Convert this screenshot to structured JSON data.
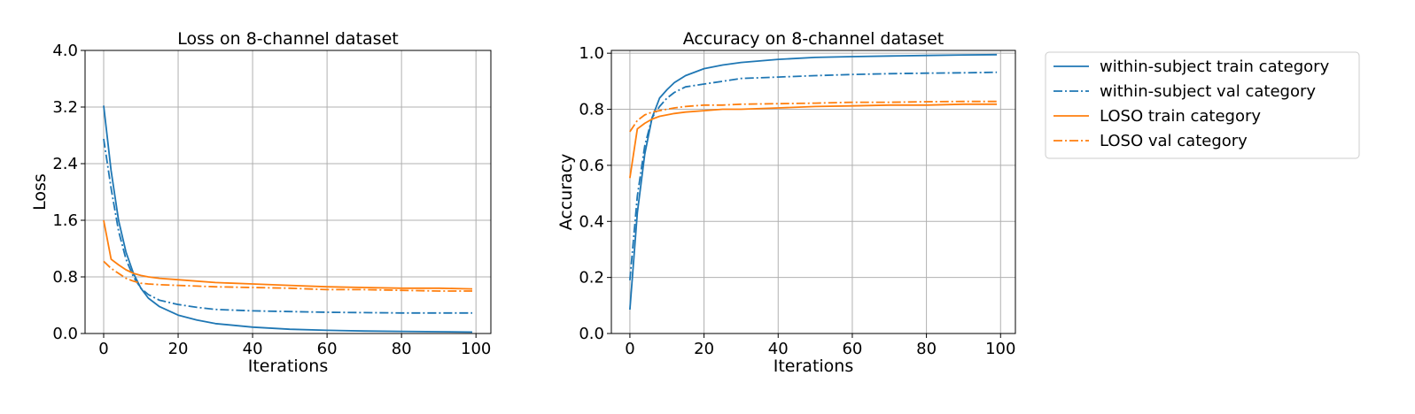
{
  "chart_data": [
    {
      "type": "line",
      "title": "Loss on 8-channel dataset",
      "xlabel": "Iterations",
      "ylabel": "Loss",
      "xlim": [
        -5,
        104
      ],
      "ylim": [
        0.0,
        4.0
      ],
      "xticks": [
        0,
        20,
        40,
        60,
        80,
        100
      ],
      "xtick_labels": [
        "0",
        "20",
        "40",
        "60",
        "80",
        "100"
      ],
      "yticks": [
        0.0,
        0.8,
        1.6,
        2.4,
        3.2,
        4.0
      ],
      "ytick_labels": [
        "0.0",
        "0.8",
        "1.6",
        "2.4",
        "3.2",
        "4.0"
      ],
      "grid": true,
      "x": [
        0,
        2,
        4,
        6,
        8,
        10,
        12,
        15,
        20,
        25,
        30,
        40,
        50,
        60,
        70,
        80,
        90,
        99
      ],
      "series": [
        {
          "name": "within-subject train category",
          "values": [
            3.22,
            2.3,
            1.6,
            1.15,
            0.85,
            0.64,
            0.5,
            0.38,
            0.26,
            0.19,
            0.14,
            0.09,
            0.06,
            0.045,
            0.035,
            0.03,
            0.025,
            0.02
          ]
        },
        {
          "name": "within-subject val category",
          "values": [
            2.75,
            2.05,
            1.45,
            1.05,
            0.8,
            0.64,
            0.55,
            0.47,
            0.41,
            0.37,
            0.34,
            0.32,
            0.31,
            0.3,
            0.295,
            0.29,
            0.29,
            0.29
          ]
        },
        {
          "name": "LOSO train category",
          "values": [
            1.6,
            1.05,
            0.97,
            0.9,
            0.85,
            0.82,
            0.8,
            0.78,
            0.76,
            0.74,
            0.72,
            0.7,
            0.68,
            0.66,
            0.65,
            0.64,
            0.64,
            0.63
          ]
        },
        {
          "name": "LOSO val category",
          "values": [
            1.02,
            0.92,
            0.85,
            0.78,
            0.74,
            0.71,
            0.7,
            0.69,
            0.68,
            0.67,
            0.66,
            0.65,
            0.64,
            0.62,
            0.62,
            0.61,
            0.6,
            0.6
          ]
        }
      ]
    },
    {
      "type": "line",
      "title": "Accuracy on 8-channel dataset",
      "xlabel": "Iterations",
      "ylabel": "Accuracy",
      "xlim": [
        -5,
        104
      ],
      "ylim": [
        0.0,
        1.01
      ],
      "xticks": [
        0,
        20,
        40,
        60,
        80,
        100
      ],
      "xtick_labels": [
        "0",
        "20",
        "40",
        "60",
        "80",
        "100"
      ],
      "yticks": [
        0.0,
        0.2,
        0.4,
        0.6,
        0.8,
        1.0
      ],
      "ytick_labels": [
        "0.0",
        "0.2",
        "0.4",
        "0.6",
        "0.8",
        "1.0"
      ],
      "grid": true,
      "x": [
        0,
        2,
        4,
        6,
        8,
        10,
        12,
        15,
        20,
        25,
        30,
        40,
        50,
        60,
        70,
        80,
        90,
        99
      ],
      "series": [
        {
          "name": "within-subject train category",
          "values": [
            0.085,
            0.43,
            0.64,
            0.77,
            0.84,
            0.87,
            0.895,
            0.92,
            0.945,
            0.958,
            0.967,
            0.978,
            0.985,
            0.988,
            0.99,
            0.992,
            0.994,
            0.995
          ]
        },
        {
          "name": "within-subject val category",
          "values": [
            0.19,
            0.49,
            0.67,
            0.77,
            0.81,
            0.84,
            0.86,
            0.88,
            0.89,
            0.9,
            0.91,
            0.915,
            0.92,
            0.924,
            0.927,
            0.929,
            0.93,
            0.932
          ]
        },
        {
          "name": "LOSO train category",
          "values": [
            0.555,
            0.73,
            0.75,
            0.765,
            0.775,
            0.78,
            0.785,
            0.79,
            0.795,
            0.8,
            0.8,
            0.805,
            0.81,
            0.812,
            0.815,
            0.815,
            0.818,
            0.818
          ]
        },
        {
          "name": "LOSO val category",
          "values": [
            0.72,
            0.76,
            0.78,
            0.79,
            0.795,
            0.8,
            0.805,
            0.81,
            0.815,
            0.815,
            0.818,
            0.82,
            0.822,
            0.825,
            0.825,
            0.827,
            0.828,
            0.828
          ]
        }
      ]
    }
  ],
  "legend": {
    "placement": "outside-right",
    "entries": [
      {
        "label": "within-subject train category",
        "color": "#1f77b4",
        "style": "solid"
      },
      {
        "label": "within-subject val category",
        "color": "#1f77b4",
        "style": "dashdot"
      },
      {
        "label": "LOSO train category",
        "color": "#ff7f0e",
        "style": "solid"
      },
      {
        "label": "LOSO val category",
        "color": "#ff7f0e",
        "style": "dashdot"
      }
    ]
  }
}
